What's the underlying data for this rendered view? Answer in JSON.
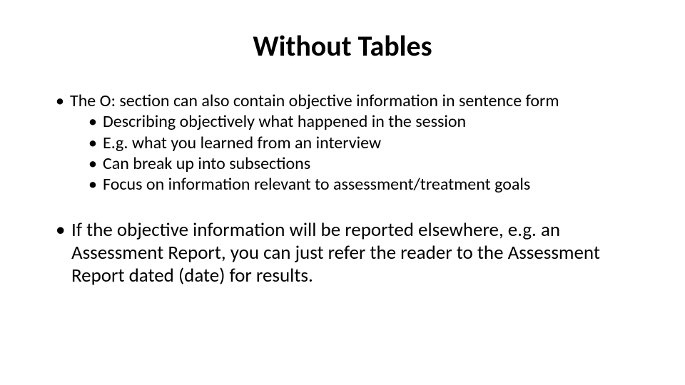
{
  "slide": {
    "title": "Without Tables",
    "title_fontsize": 40,
    "title_fontweight": 700,
    "body_fontsize_level1": 24,
    "body_fontsize_block2": 27,
    "text_color": "#000000",
    "background_color": "#ffffff",
    "bullets": {
      "block1": {
        "item1": "The O: section can also contain objective information in sentence form",
        "sub": {
          "s1": "Describing objectively what happened in the session",
          "s2": "E.g. what you learned from an interview",
          "s3": "Can break up into subsections",
          "s4": "Focus on information relevant to assessment/treatment goals"
        }
      },
      "block2": {
        "item1": "If the objective information will be reported elsewhere, e.g. an Assessment Report, you can just refer the reader to the Assessment Report dated (date) for results."
      }
    }
  }
}
